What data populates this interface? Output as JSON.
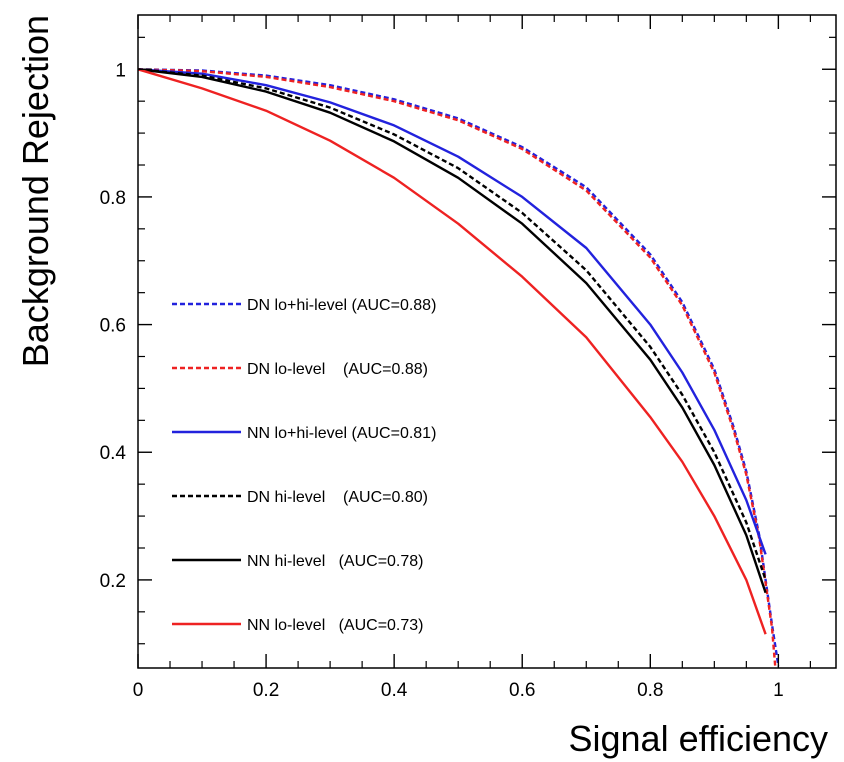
{
  "chart_data": {
    "type": "line",
    "title": "",
    "xlabel": "Signal efficiency",
    "ylabel": "Background Rejection",
    "xlim": [
      0,
      1.09
    ],
    "ylim": [
      0.062,
      1.085
    ],
    "xticks": [
      0,
      0.2,
      0.4,
      0.6,
      0.8,
      1
    ],
    "xtick_labels": [
      "0",
      "0.2",
      "0.4",
      "0.6",
      "0.8",
      "1"
    ],
    "yticks": [
      0.2,
      0.4,
      0.6,
      0.8,
      1
    ],
    "ytick_labels": [
      "0.2",
      "0.4",
      "0.6",
      "0.8",
      "1"
    ],
    "grid": false,
    "legend_position": "center-left",
    "series": [
      {
        "name": "DN lo+hi-level (AUC=0.88)",
        "color": "#2222dd",
        "dash": "dashed",
        "x": [
          0,
          0.1,
          0.2,
          0.3,
          0.4,
          0.5,
          0.6,
          0.7,
          0.8,
          0.85,
          0.9,
          0.93,
          0.95,
          0.97,
          0.98,
          0.99,
          1.0
        ],
        "y": [
          1.0,
          0.998,
          0.99,
          0.975,
          0.953,
          0.923,
          0.878,
          0.815,
          0.71,
          0.635,
          0.53,
          0.44,
          0.37,
          0.27,
          0.2,
          0.13,
          0.065
        ]
      },
      {
        "name": "DN lo-level    (AUC=0.88)",
        "color": "#ee2222",
        "dash": "dashed",
        "x": [
          0,
          0.1,
          0.2,
          0.3,
          0.4,
          0.5,
          0.6,
          0.7,
          0.8,
          0.85,
          0.9,
          0.93,
          0.95,
          0.97,
          0.98,
          0.99,
          0.995
        ],
        "y": [
          1.0,
          0.997,
          0.988,
          0.972,
          0.95,
          0.92,
          0.875,
          0.81,
          0.705,
          0.63,
          0.525,
          0.435,
          0.365,
          0.265,
          0.195,
          0.125,
          0.065
        ]
      },
      {
        "name": "NN lo+hi-level (AUC=0.81)",
        "color": "#2222dd",
        "dash": "solid",
        "x": [
          0,
          0.1,
          0.2,
          0.3,
          0.4,
          0.5,
          0.6,
          0.7,
          0.8,
          0.85,
          0.9,
          0.95,
          0.98
        ],
        "y": [
          1.0,
          0.993,
          0.975,
          0.948,
          0.912,
          0.863,
          0.8,
          0.72,
          0.6,
          0.525,
          0.435,
          0.325,
          0.24
        ]
      },
      {
        "name": "DN hi-level    (AUC=0.80)",
        "color": "#000000",
        "dash": "dashed",
        "x": [
          0,
          0.1,
          0.2,
          0.3,
          0.4,
          0.5,
          0.6,
          0.7,
          0.8,
          0.85,
          0.9,
          0.95,
          0.98
        ],
        "y": [
          1.0,
          0.99,
          0.97,
          0.94,
          0.898,
          0.845,
          0.775,
          0.685,
          0.565,
          0.49,
          0.4,
          0.29,
          0.2
        ]
      },
      {
        "name": "NN hi-level   (AUC=0.78)",
        "color": "#000000",
        "dash": "solid",
        "x": [
          0,
          0.1,
          0.2,
          0.3,
          0.4,
          0.5,
          0.6,
          0.7,
          0.8,
          0.85,
          0.9,
          0.95,
          0.98
        ],
        "y": [
          1.0,
          0.988,
          0.965,
          0.932,
          0.887,
          0.83,
          0.758,
          0.665,
          0.545,
          0.47,
          0.38,
          0.27,
          0.18
        ]
      },
      {
        "name": "NN lo-level   (AUC=0.73)",
        "color": "#ee2222",
        "dash": "solid",
        "x": [
          0,
          0.1,
          0.2,
          0.3,
          0.4,
          0.5,
          0.6,
          0.7,
          0.8,
          0.85,
          0.9,
          0.95,
          0.98
        ],
        "y": [
          1.0,
          0.97,
          0.935,
          0.888,
          0.83,
          0.758,
          0.675,
          0.58,
          0.455,
          0.385,
          0.3,
          0.2,
          0.115
        ]
      }
    ]
  }
}
